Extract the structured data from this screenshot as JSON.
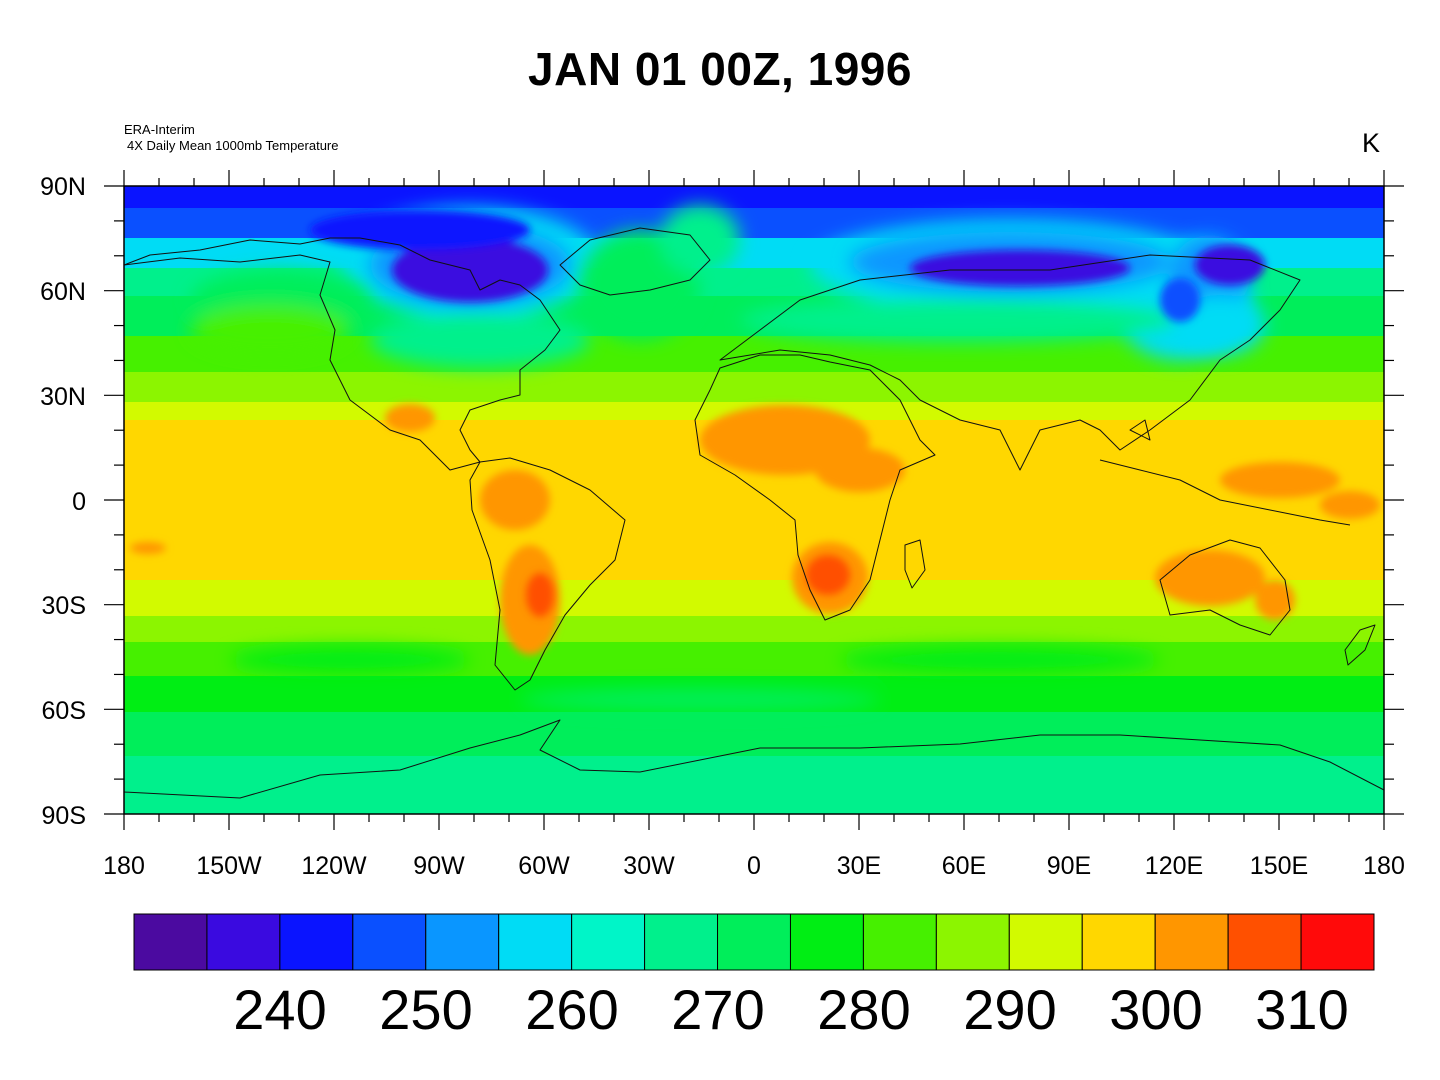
{
  "title": "JAN 01 00Z, 1996",
  "source_line1": "ERA-Interim",
  "source_line2": "4X Daily Mean 1000mb Temperature",
  "units": "K",
  "lat_labels": [
    "90N",
    "60N",
    "30N",
    "0",
    "30S",
    "60S",
    "90S"
  ],
  "lon_labels": [
    "180",
    "150W",
    "120W",
    "90W",
    "60W",
    "30W",
    "0",
    "30E",
    "60E",
    "90E",
    "120E",
    "150E",
    "180"
  ],
  "colorbar": {
    "labels": [
      "240",
      "250",
      "260",
      "270",
      "280",
      "290",
      "300",
      "310"
    ],
    "colors": [
      "#4b0aa0",
      "#3a0ae0",
      "#0a14ff",
      "#0a50ff",
      "#0a96ff",
      "#00dcf5",
      "#00f5c8",
      "#00f08c",
      "#00ee5a",
      "#00ee14",
      "#46f000",
      "#8cf500",
      "#d2fa00",
      "#ffd700",
      "#ff9600",
      "#ff5000",
      "#ff0a0a"
    ]
  },
  "chart_data": {
    "type": "heatmap",
    "title": "JAN 01 00Z, 1996",
    "subtitle": "ERA-Interim 4X Daily Mean 1000mb Temperature",
    "units": "K",
    "xlim": [
      -180,
      180
    ],
    "ylim": [
      -90,
      90
    ],
    "contour_levels_labeled": [
      240,
      250,
      260,
      270,
      280,
      290,
      300,
      310
    ]
  }
}
